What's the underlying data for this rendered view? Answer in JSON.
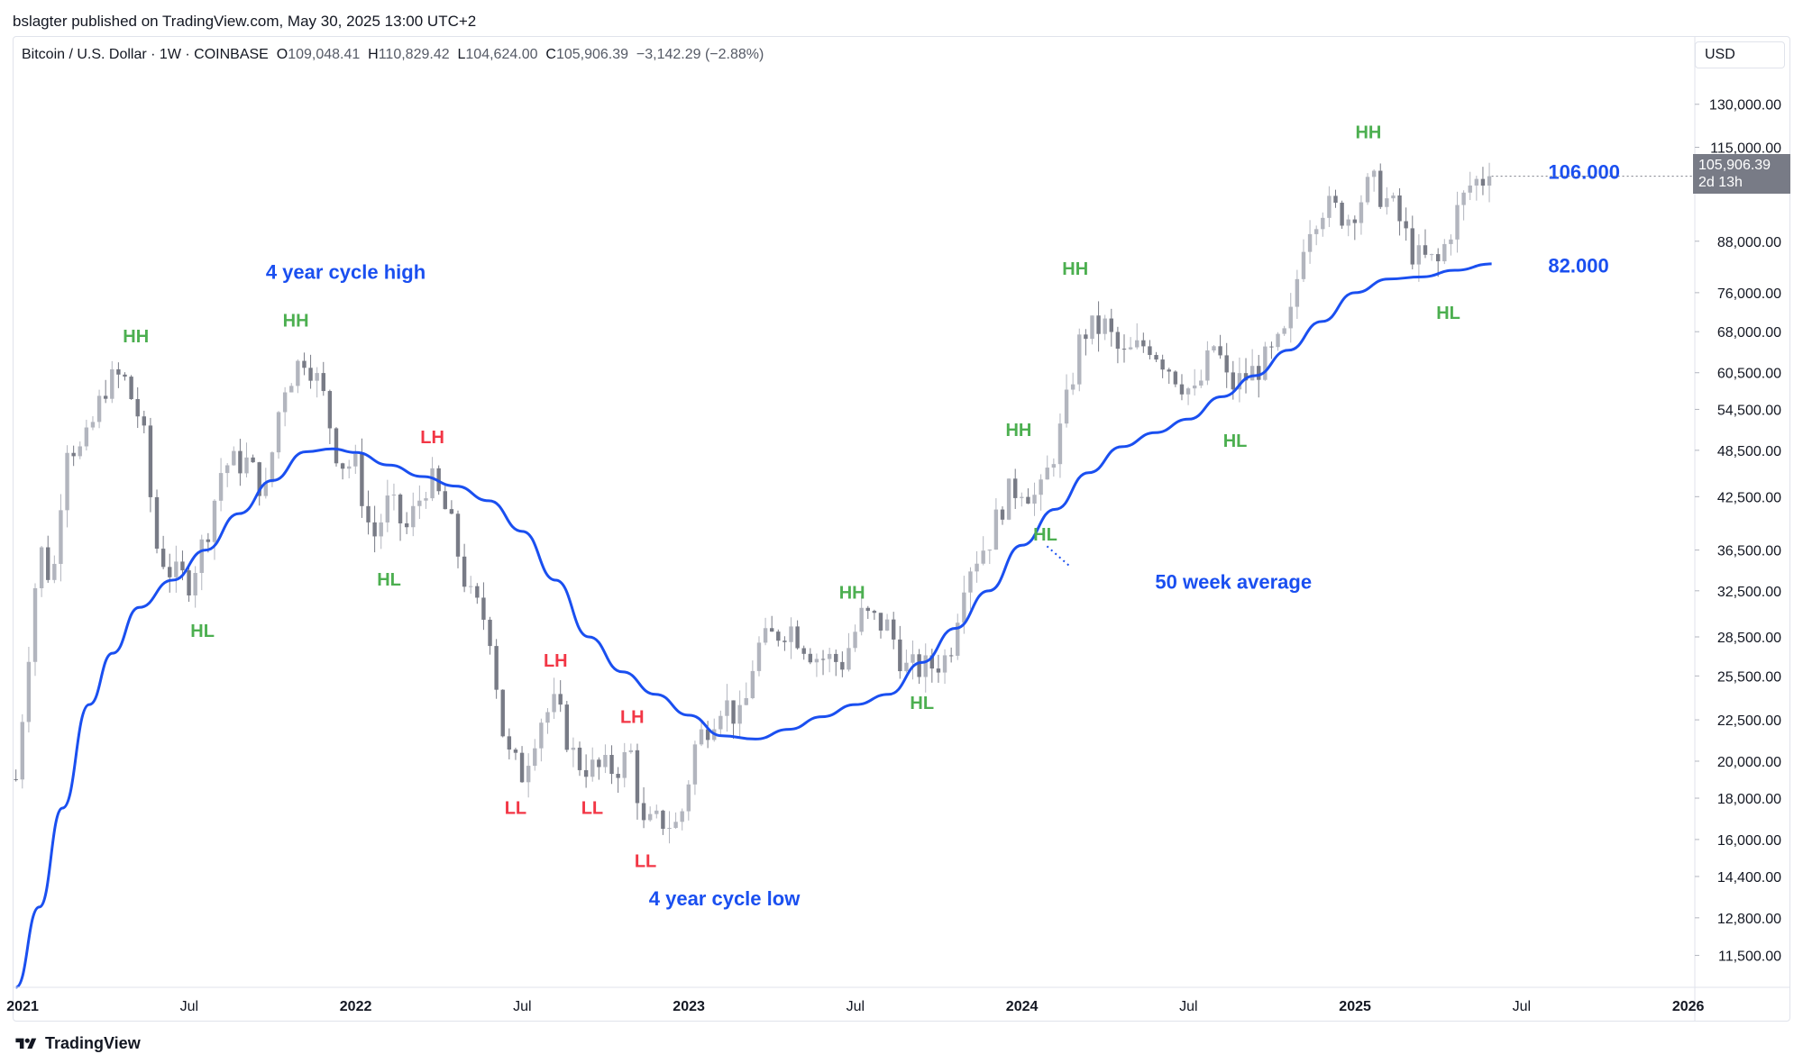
{
  "publisher": "bslagter published on TradingView.com, May 30, 2025 13:00 UTC+2",
  "legend": {
    "symbol": "Bitcoin / U.S. Dollar · 1W · COINBASE",
    "open": "109,048.41",
    "high": "110,829.42",
    "low": "104,624.00",
    "close": "105,906.39",
    "change": "−3,142.29 (−2.88%)"
  },
  "currency": "USD",
  "last_price": {
    "value": "105,906.39",
    "countdown": "2d 13h"
  },
  "footer": {
    "brand": "TradingView",
    "icon": "tradingview-logo-icon"
  },
  "colors": {
    "ma_line": "#1a4ff0",
    "candle_up": "#b2b5be",
    "candle_down": "#787b86",
    "label_green": "#4caf50",
    "label_red": "#f23645",
    "annotation_blue": "#1a4ff0"
  },
  "chart_data": {
    "type": "candlestick",
    "scale": "log",
    "x_range": [
      2020.97,
      2026.02
    ],
    "ylim": [
      10500,
      150000
    ],
    "y_ticks": [
      11500,
      12800,
      14400,
      16000,
      18000,
      20000,
      22500,
      25500,
      28500,
      32500,
      36500,
      42500,
      48500,
      54500,
      60500,
      68000,
      76000,
      88000,
      115000,
      130000
    ],
    "y_tick_labels": [
      "11,500.00",
      "12,800.00",
      "14,400.00",
      "16,000.00",
      "18,000.00",
      "20,000.00",
      "22,500.00",
      "25,500.00",
      "28,500.00",
      "32,500.00",
      "36,500.00",
      "42,500.00",
      "48,500.00",
      "54,500.00",
      "60,500.00",
      "68,000.00",
      "76,000.00",
      "88,000.00",
      "115,000.00",
      "130,000.00"
    ],
    "x_ticks": [
      {
        "x": 2021.0,
        "label": "2021",
        "bold": true
      },
      {
        "x": 2021.5,
        "label": "Jul",
        "bold": false
      },
      {
        "x": 2022.0,
        "label": "2022",
        "bold": true
      },
      {
        "x": 2022.5,
        "label": "Jul",
        "bold": false
      },
      {
        "x": 2023.0,
        "label": "2023",
        "bold": true
      },
      {
        "x": 2023.5,
        "label": "Jul",
        "bold": false
      },
      {
        "x": 2024.0,
        "label": "2024",
        "bold": true
      },
      {
        "x": 2024.5,
        "label": "Jul",
        "bold": false
      },
      {
        "x": 2025.0,
        "label": "2025",
        "bold": true
      },
      {
        "x": 2025.5,
        "label": "Jul",
        "bold": false
      },
      {
        "x": 2026.0,
        "label": "2026",
        "bold": true
      }
    ],
    "price_path": [
      [
        2020.98,
        19000
      ],
      [
        2021.02,
        28000
      ],
      [
        2021.05,
        37000
      ],
      [
        2021.09,
        33000
      ],
      [
        2021.13,
        50000
      ],
      [
        2021.18,
        48000
      ],
      [
        2021.25,
        58500
      ],
      [
        2021.3,
        60000
      ],
      [
        2021.36,
        52000
      ],
      [
        2021.4,
        37000
      ],
      [
        2021.45,
        34000
      ],
      [
        2021.5,
        33500
      ],
      [
        2021.55,
        38000
      ],
      [
        2021.6,
        46500
      ],
      [
        2021.67,
        47000
      ],
      [
        2021.73,
        43000
      ],
      [
        2021.78,
        58000
      ],
      [
        2021.85,
        64000
      ],
      [
        2021.9,
        57000
      ],
      [
        2021.95,
        47000
      ],
      [
        2022.0,
        46300
      ],
      [
        2022.05,
        37500
      ],
      [
        2022.1,
        42000
      ],
      [
        2022.15,
        38500
      ],
      [
        2022.22,
        45000
      ],
      [
        2022.28,
        40000
      ],
      [
        2022.34,
        32000
      ],
      [
        2022.4,
        29500
      ],
      [
        2022.45,
        20500
      ],
      [
        2022.5,
        19300
      ],
      [
        2022.55,
        22500
      ],
      [
        2022.6,
        23500
      ],
      [
        2022.66,
        20000
      ],
      [
        2022.72,
        19500
      ],
      [
        2022.78,
        19600
      ],
      [
        2022.83,
        20500
      ],
      [
        2022.86,
        16500
      ],
      [
        2022.92,
        16900
      ],
      [
        2022.97,
        16600
      ],
      [
        2023.02,
        21000
      ],
      [
        2023.1,
        23800
      ],
      [
        2023.16,
        22300
      ],
      [
        2023.2,
        27500
      ],
      [
        2023.3,
        29500
      ],
      [
        2023.38,
        27000
      ],
      [
        2023.46,
        26500
      ],
      [
        2023.52,
        30300
      ],
      [
        2023.6,
        29300
      ],
      [
        2023.65,
        26000
      ],
      [
        2023.72,
        26100
      ],
      [
        2023.78,
        27000
      ],
      [
        2023.83,
        34500
      ],
      [
        2023.9,
        37500
      ],
      [
        2023.95,
        42500
      ],
      [
        2024.0,
        44000
      ],
      [
        2024.05,
        42000
      ],
      [
        2024.12,
        52000
      ],
      [
        2024.18,
        68000
      ],
      [
        2024.25,
        69000
      ],
      [
        2024.3,
        63000
      ],
      [
        2024.38,
        66000
      ],
      [
        2024.45,
        61000
      ],
      [
        2024.52,
        56500
      ],
      [
        2024.58,
        66000
      ],
      [
        2024.62,
        58000
      ],
      [
        2024.68,
        60000
      ],
      [
        2024.75,
        63500
      ],
      [
        2024.8,
        68000
      ],
      [
        2024.85,
        91000
      ],
      [
        2024.9,
        97500
      ],
      [
        2024.98,
        94500
      ],
      [
        2025.05,
        104000
      ],
      [
        2025.12,
        96000
      ],
      [
        2025.18,
        84000
      ],
      [
        2025.25,
        82500
      ],
      [
        2025.3,
        94500
      ],
      [
        2025.35,
        104000
      ],
      [
        2025.41,
        105906
      ]
    ],
    "ma50": [
      [
        2020.98,
        10500
      ],
      [
        2021.05,
        13200
      ],
      [
        2021.12,
        17500
      ],
      [
        2021.2,
        23500
      ],
      [
        2021.27,
        27200
      ],
      [
        2021.35,
        31000
      ],
      [
        2021.45,
        33500
      ],
      [
        2021.55,
        36500
      ],
      [
        2021.65,
        40500
      ],
      [
        2021.75,
        44500
      ],
      [
        2021.85,
        48300
      ],
      [
        2021.93,
        48700
      ],
      [
        2022.0,
        48200
      ],
      [
        2022.1,
        46500
      ],
      [
        2022.2,
        45000
      ],
      [
        2022.3,
        43800
      ],
      [
        2022.4,
        42000
      ],
      [
        2022.5,
        38500
      ],
      [
        2022.6,
        33500
      ],
      [
        2022.7,
        28500
      ],
      [
        2022.8,
        25800
      ],
      [
        2022.9,
        24200
      ],
      [
        2023.0,
        22800
      ],
      [
        2023.1,
        21500
      ],
      [
        2023.2,
        21300
      ],
      [
        2023.3,
        21900
      ],
      [
        2023.4,
        22700
      ],
      [
        2023.5,
        23500
      ],
      [
        2023.6,
        24200
      ],
      [
        2023.7,
        26500
      ],
      [
        2023.8,
        29200
      ],
      [
        2023.9,
        32500
      ],
      [
        2024.0,
        37000
      ],
      [
        2024.1,
        41000
      ],
      [
        2024.2,
        45500
      ],
      [
        2024.3,
        49000
      ],
      [
        2024.4,
        51000
      ],
      [
        2024.5,
        53000
      ],
      [
        2024.6,
        56500
      ],
      [
        2024.7,
        60000
      ],
      [
        2024.8,
        64500
      ],
      [
        2024.9,
        70000
      ],
      [
        2025.0,
        76000
      ],
      [
        2025.1,
        79000
      ],
      [
        2025.2,
        79500
      ],
      [
        2025.3,
        81000
      ],
      [
        2025.41,
        82500
      ]
    ],
    "structure_labels": [
      {
        "text": "HH",
        "x": 2021.34,
        "y": 66000,
        "color": "green"
      },
      {
        "text": "HL",
        "x": 2021.54,
        "y": 28500,
        "color": "green"
      },
      {
        "text": "HH",
        "x": 2021.82,
        "y": 69000,
        "color": "green"
      },
      {
        "text": "HL",
        "x": 2022.1,
        "y": 33000,
        "color": "green"
      },
      {
        "text": "LH",
        "x": 2022.23,
        "y": 49500,
        "color": "red"
      },
      {
        "text": "LL",
        "x": 2022.48,
        "y": 17200,
        "color": "red"
      },
      {
        "text": "LH",
        "x": 2022.6,
        "y": 26200,
        "color": "red"
      },
      {
        "text": "LL",
        "x": 2022.71,
        "y": 17200,
        "color": "red"
      },
      {
        "text": "LH",
        "x": 2022.83,
        "y": 22300,
        "color": "red"
      },
      {
        "text": "LL",
        "x": 2022.87,
        "y": 14800,
        "color": "red"
      },
      {
        "text": "HH",
        "x": 2023.49,
        "y": 31800,
        "color": "green"
      },
      {
        "text": "HL",
        "x": 2023.7,
        "y": 23200,
        "color": "green"
      },
      {
        "text": "HH",
        "x": 2023.99,
        "y": 50500,
        "color": "green"
      },
      {
        "text": "HL",
        "x": 2024.07,
        "y": 37500,
        "color": "green"
      },
      {
        "text": "HH",
        "x": 2024.16,
        "y": 80000,
        "color": "green"
      },
      {
        "text": "HL",
        "x": 2024.64,
        "y": 49000,
        "color": "green"
      },
      {
        "text": "HH",
        "x": 2025.04,
        "y": 118000,
        "color": "green"
      },
      {
        "text": "HL",
        "x": 2025.28,
        "y": 70500,
        "color": "green"
      }
    ],
    "annotations": [
      {
        "text": "4 year cycle high",
        "x": 2021.73,
        "y": 80500
      },
      {
        "text": "4 year cycle low",
        "x": 2022.88,
        "y": 13500
      },
      {
        "text": "50 week average",
        "x": 2024.4,
        "y": 33300
      },
      {
        "text": "106.000",
        "x": 2025.58,
        "y": 107000
      },
      {
        "text": "82.000",
        "x": 2025.58,
        "y": 82000
      }
    ]
  }
}
